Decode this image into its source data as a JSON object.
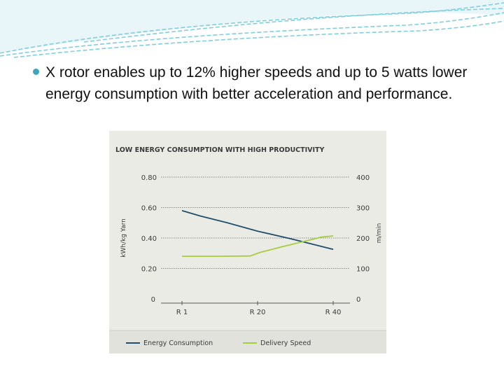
{
  "slide": {
    "bullet_text": "X rotor enables up to 12% higher speeds and up to 5 watts lower energy consumption with better acceleration and performance.",
    "bullet_color": "#3aa7bd",
    "decor_color": "#7fcfdf"
  },
  "chart_data": {
    "type": "line",
    "title": "LOW ENERGY CONSUMPTION WITH HIGH PRODUCTIVITY",
    "categories": [
      "R 1",
      "R 20",
      "R 40"
    ],
    "ylabel": "kWh/kg Yarn",
    "ylabel_right": "m/min",
    "ylim": [
      0,
      0.8
    ],
    "ylim_right": [
      0,
      400
    ],
    "yticks": [
      "0",
      "0.20",
      "0.40",
      "0.60",
      "0.80"
    ],
    "yticks_right": [
      "0",
      "100",
      "200",
      "300",
      "400"
    ],
    "grid": true,
    "legend": "bottom",
    "series": [
      {
        "name": "Energy Consumption",
        "axis": "left",
        "color": "#1f4e6b",
        "x": [
          0.0,
          0.12,
          0.3,
          0.5,
          0.72,
          0.88,
          1.0
        ],
        "values": [
          0.58,
          0.545,
          0.5,
          0.445,
          0.395,
          0.355,
          0.325
        ]
      },
      {
        "name": "Delivery Speed",
        "axis": "right",
        "color": "#a8cc3c",
        "x": [
          0.0,
          0.25,
          0.45,
          0.52,
          0.65,
          0.8,
          0.92,
          1.0
        ],
        "values": [
          140,
          140,
          141,
          153,
          170,
          188,
          203,
          207
        ]
      }
    ]
  }
}
